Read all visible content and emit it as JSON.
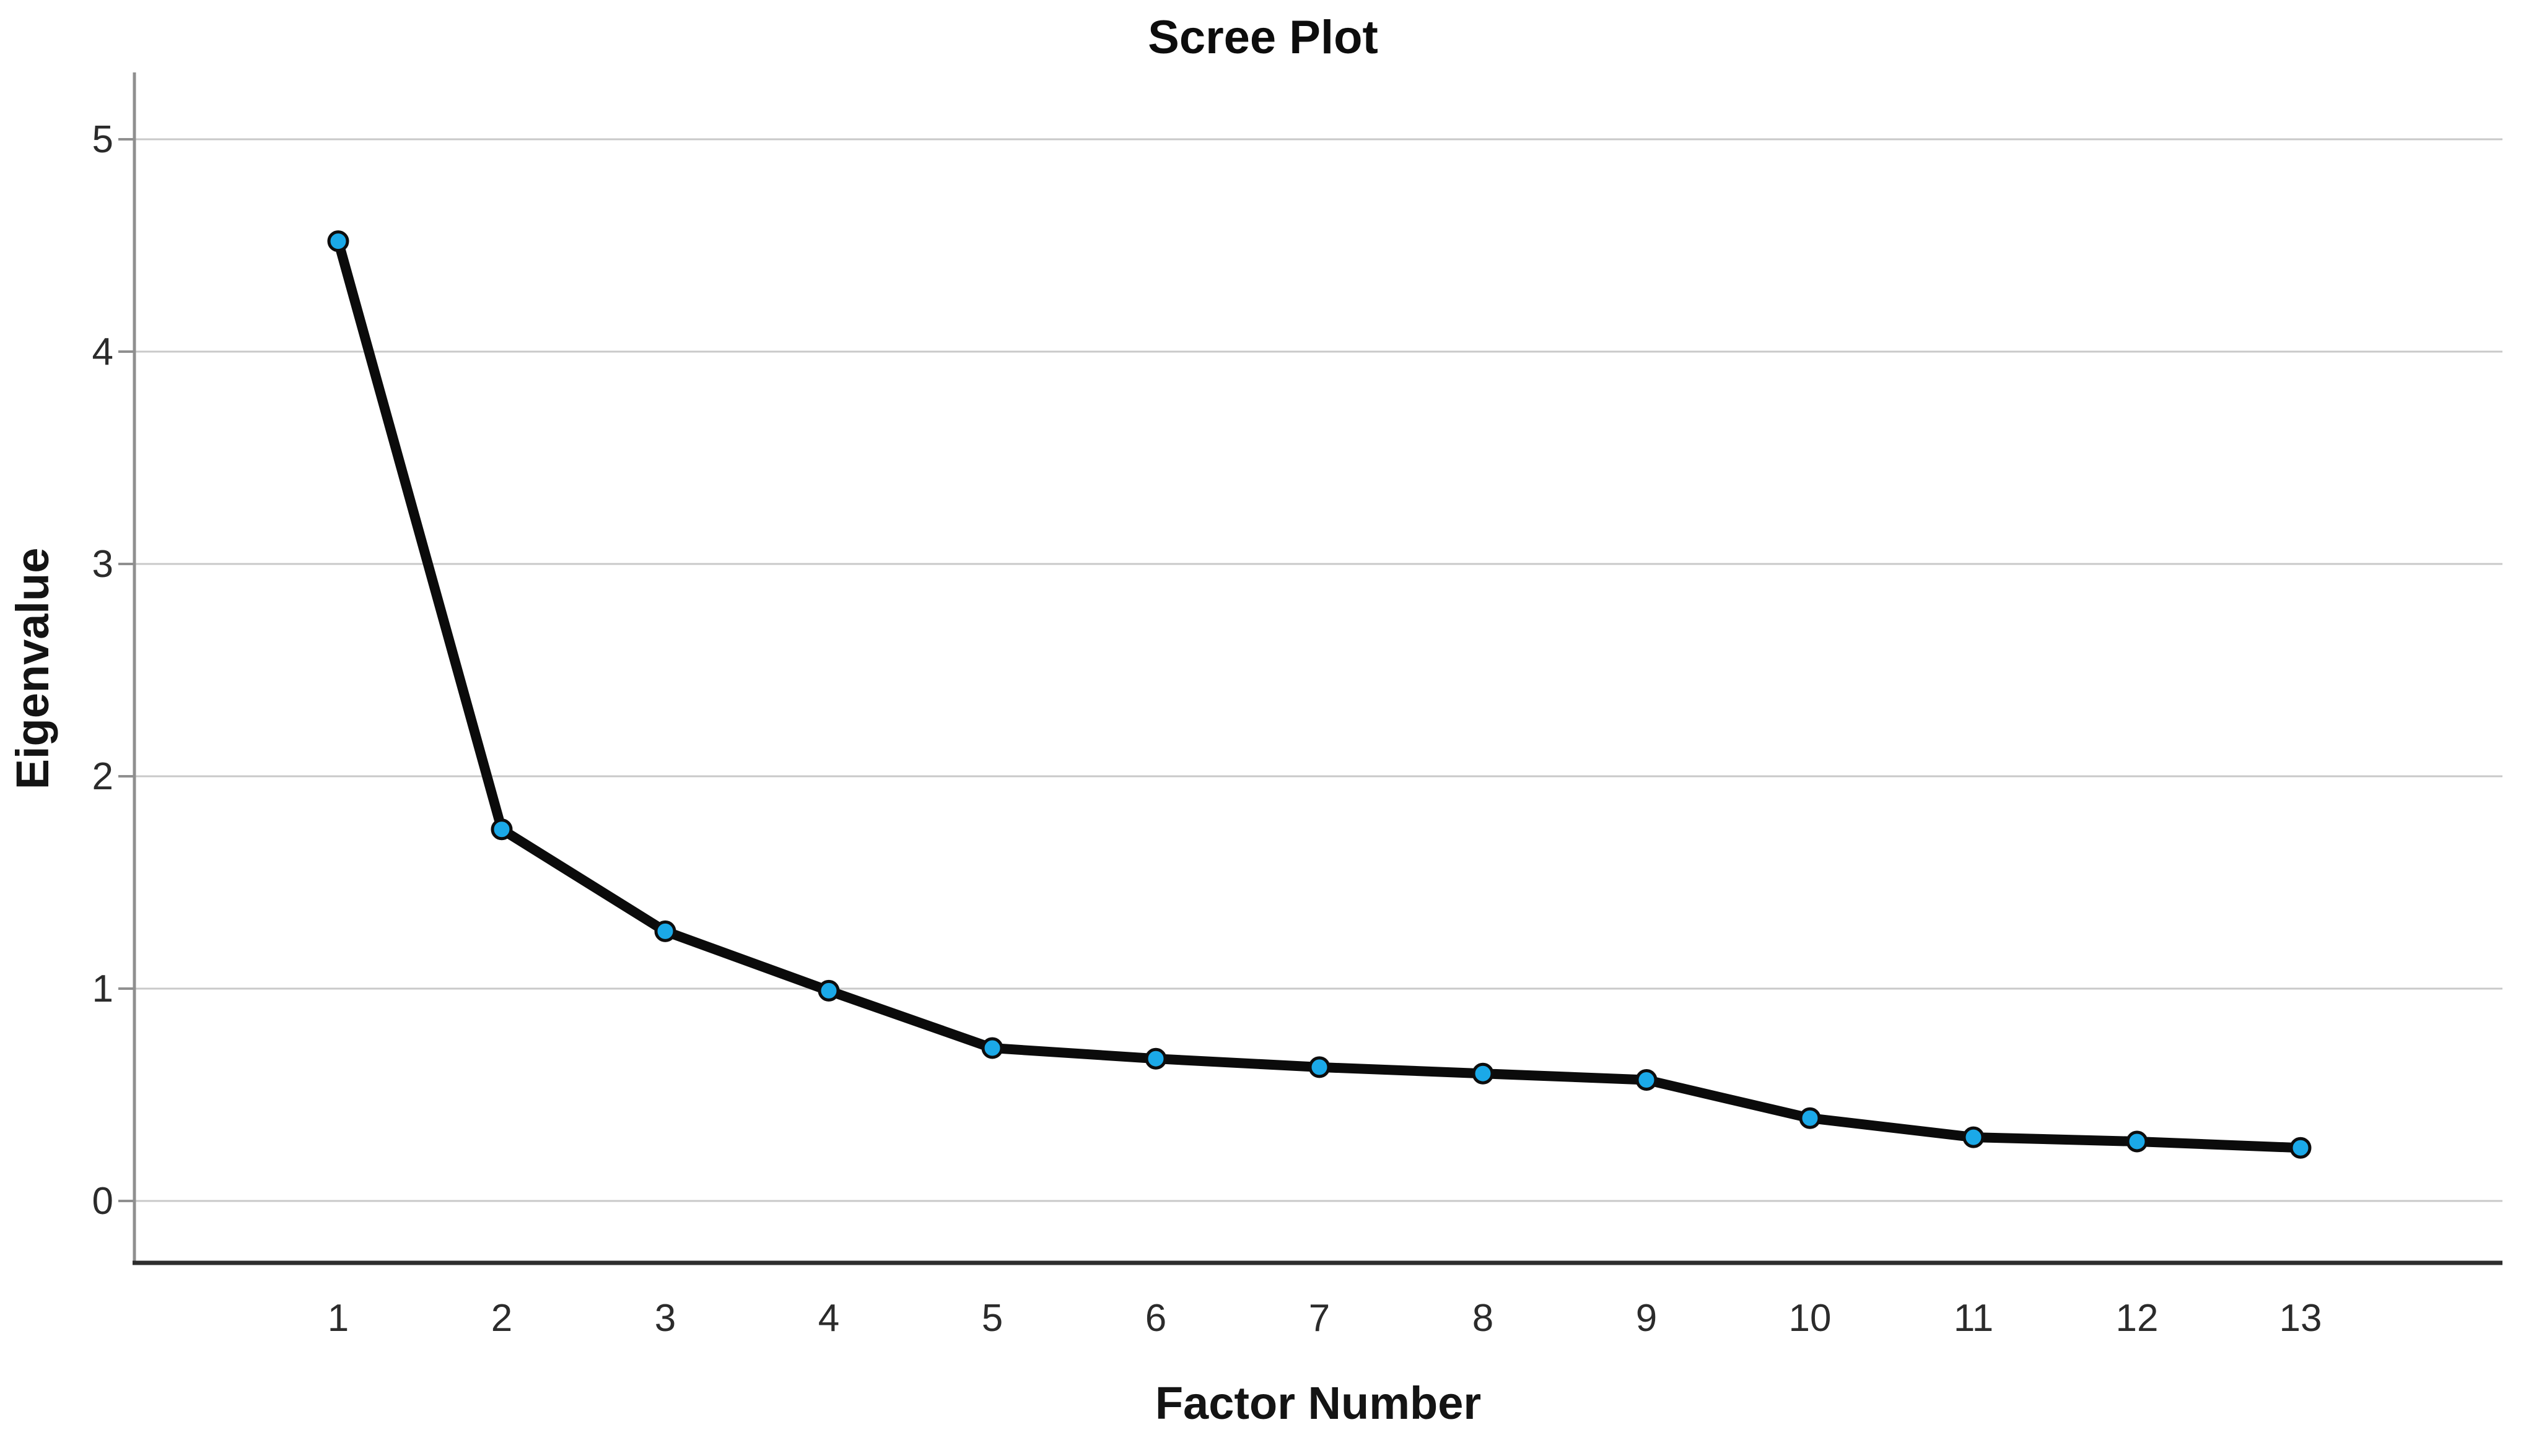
{
  "title": "Scree Plot",
  "colors": {
    "marker_fill": "#1BA9E8",
    "marker_stroke": "#0d0d0d",
    "line": "#0b0b0b",
    "gridline": "#c9c9c9",
    "y_axis_line": "#8f8f8f",
    "x_axis_line": "#2e2e2e",
    "tick_text": "#2b2b2b",
    "title_text": "#0d0d0d",
    "background": "#ffffff"
  },
  "chart_data": {
    "type": "line",
    "title": "Scree Plot",
    "xlabel": "Factor Number",
    "ylabel": "Eigenvalue",
    "x": [
      1,
      2,
      3,
      4,
      5,
      6,
      7,
      8,
      9,
      10,
      11,
      12,
      13
    ],
    "x_tick_labels": [
      "1",
      "2",
      "3",
      "4",
      "5",
      "6",
      "7",
      "8",
      "9",
      "10",
      "11",
      "12",
      "13"
    ],
    "series": [
      {
        "name": "Eigenvalue",
        "values": [
          4.52,
          1.75,
          1.27,
          0.99,
          0.72,
          0.67,
          0.63,
          0.6,
          0.57,
          0.39,
          0.3,
          0.28,
          0.25
        ]
      }
    ],
    "y_ticks": [
      0,
      1,
      2,
      3,
      4,
      5
    ],
    "y_tick_labels": [
      "0",
      "1",
      "2",
      "3",
      "4",
      "5"
    ],
    "ylim": [
      -0.29,
      5.31
    ],
    "grid": "horizontal",
    "legend": "none"
  }
}
